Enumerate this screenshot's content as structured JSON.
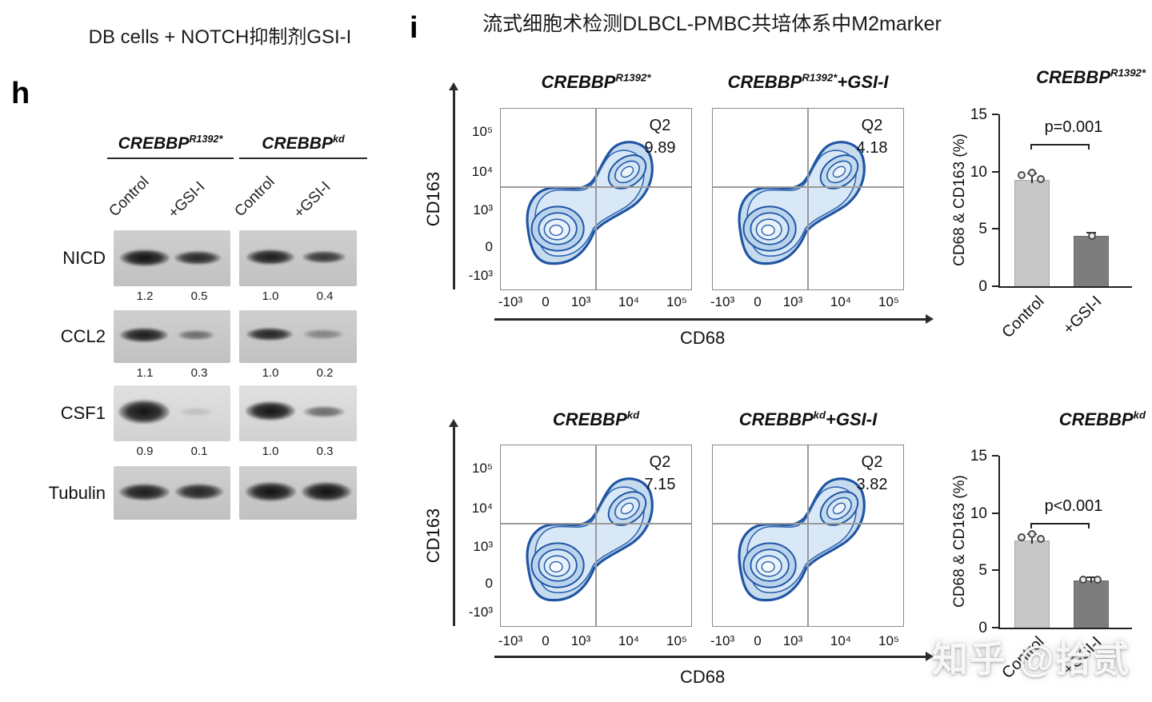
{
  "watermark": "知乎 @拾贰",
  "panel_h": {
    "label": "h",
    "title": "DB cells + NOTCH抑制剂GSI-I",
    "groups": [
      {
        "base": "CREBBP",
        "sup": "R1392*"
      },
      {
        "base": "CREBBP",
        "sup": "kd"
      }
    ],
    "lanes": [
      "Control",
      "+GSI-I",
      "Control",
      "+GSI-I"
    ],
    "rows": [
      {
        "protein": "NICD",
        "values": [
          "1.2",
          "0.5",
          "1.0",
          "0.4"
        ]
      },
      {
        "protein": "CCL2",
        "values": [
          "1.1",
          "0.3",
          "1.0",
          "0.2"
        ]
      },
      {
        "protein": "CSF1",
        "values": [
          "0.9",
          "0.1",
          "1.0",
          "0.3"
        ]
      },
      {
        "protein": "Tubulin",
        "values": []
      }
    ]
  },
  "panel_i": {
    "label": "i",
    "title": "流式细胞术检测DLBCL-PMBC共培体系中M2marker",
    "flow_rows": [
      {
        "y_label": "CD163",
        "x_label": "CD68",
        "y_ticks": [
          "10⁵",
          "10⁴",
          "10³",
          "0",
          "-10³"
        ],
        "x_ticks": [
          "-10³",
          "0",
          "10³",
          "10⁴",
          "10⁵"
        ],
        "plots": [
          {
            "title_base": "CREBBP",
            "title_sup": "R1392*",
            "title_suffix": "",
            "quadrant": "Q2",
            "value": "9.89"
          },
          {
            "title_base": "CREBBP",
            "title_sup": "R1392*",
            "title_suffix": "+GSI-I",
            "quadrant": "Q2",
            "value": "4.18"
          }
        ]
      },
      {
        "y_label": "CD163",
        "x_label": "CD68",
        "y_ticks": [
          "10⁵",
          "10⁴",
          "10³",
          "0",
          "-10³"
        ],
        "x_ticks": [
          "-10³",
          "0",
          "10³",
          "10⁴",
          "10⁵"
        ],
        "plots": [
          {
            "title_base": "CREBBP",
            "title_sup": "kd",
            "title_suffix": "",
            "quadrant": "Q2",
            "value": "7.15"
          },
          {
            "title_base": "CREBBP",
            "title_sup": "kd",
            "title_suffix": "+GSI-I",
            "quadrant": "Q2",
            "value": "3.82"
          }
        ]
      }
    ],
    "bar_charts": [
      {
        "title_base": "CREBBP",
        "title_sup": "R1392*",
        "y_label": "CD68 & CD163 (%)",
        "y_ticks": [
          "15",
          "10",
          "5",
          "0"
        ],
        "p_value": "p=0.001",
        "categories": [
          "Control",
          "+GSI-I"
        ]
      },
      {
        "title_base": "CREBBP",
        "title_sup": "kd",
        "y_label": "CD68 & CD163 (%)",
        "y_ticks": [
          "15",
          "10",
          "5",
          "0"
        ],
        "p_value": "p<0.001",
        "categories": [
          "Control",
          "+GSI-I"
        ]
      }
    ]
  },
  "chart_data": [
    {
      "type": "heatmap",
      "subtype": "flow-contour",
      "title": "CREBBP R1392*",
      "xlabel": "CD68",
      "ylabel": "CD163",
      "x_ticks": [
        "-10^3",
        "0",
        "10^3",
        "10^4",
        "10^5"
      ],
      "y_ticks": [
        "10^5",
        "10^4",
        "10^3",
        "0",
        "-10^3"
      ],
      "quadrant_label": "Q2",
      "q2_percent": 9.89
    },
    {
      "type": "heatmap",
      "subtype": "flow-contour",
      "title": "CREBBP R1392* +GSI-I",
      "xlabel": "CD68",
      "ylabel": "CD163",
      "x_ticks": [
        "-10^3",
        "0",
        "10^3",
        "10^4",
        "10^5"
      ],
      "y_ticks": [
        "10^5",
        "10^4",
        "10^3",
        "0",
        "-10^3"
      ],
      "quadrant_label": "Q2",
      "q2_percent": 4.18
    },
    {
      "type": "heatmap",
      "subtype": "flow-contour",
      "title": "CREBBP kd",
      "xlabel": "CD68",
      "ylabel": "CD163",
      "x_ticks": [
        "-10^3",
        "0",
        "10^3",
        "10^4",
        "10^5"
      ],
      "y_ticks": [
        "10^5",
        "10^4",
        "10^3",
        "0",
        "-10^3"
      ],
      "quadrant_label": "Q2",
      "q2_percent": 7.15
    },
    {
      "type": "heatmap",
      "subtype": "flow-contour",
      "title": "CREBBP kd +GSI-I",
      "xlabel": "CD68",
      "ylabel": "CD163",
      "x_ticks": [
        "-10^3",
        "0",
        "10^3",
        "10^4",
        "10^5"
      ],
      "y_ticks": [
        "10^5",
        "10^4",
        "10^3",
        "0",
        "-10^3"
      ],
      "quadrant_label": "Q2",
      "q2_percent": 3.82
    },
    {
      "type": "bar",
      "title": "CREBBP R1392*",
      "categories": [
        "Control",
        "+GSI-I"
      ],
      "values": [
        9.3,
        4.4
      ],
      "points": [
        [
          9.0,
          9.8,
          9.4
        ],
        [
          4.4
        ]
      ],
      "ylabel": "CD68 & CD163 (%)",
      "ylim": [
        0,
        15
      ],
      "yticks": [
        0,
        5,
        10,
        15
      ],
      "p_value": "p=0.001",
      "legend": "none",
      "grid": false
    },
    {
      "type": "bar",
      "title": "CREBBP kd",
      "categories": [
        "Control",
        "+GSI-I"
      ],
      "values": [
        7.6,
        4.1
      ],
      "points": [
        [
          7.3,
          7.9,
          7.6
        ],
        [
          4.0,
          4.2
        ]
      ],
      "ylabel": "CD68 & CD163 (%)",
      "ylim": [
        0,
        15
      ],
      "yticks": [
        0,
        5,
        10,
        15
      ],
      "p_value": "p<0.001",
      "legend": "none",
      "grid": false
    },
    {
      "type": "table",
      "subtype": "western-blot-quantification",
      "title": "DB cells + NOTCH inhibitor GSI-I",
      "columns": [
        "CREBBP R1392* Control",
        "CREBBP R1392* +GSI-I",
        "CREBBP kd Control",
        "CREBBP kd +GSI-I"
      ],
      "rows": [
        {
          "protein": "NICD",
          "values": [
            1.2,
            0.5,
            1.0,
            0.4
          ]
        },
        {
          "protein": "CCL2",
          "values": [
            1.1,
            0.3,
            1.0,
            0.2
          ]
        },
        {
          "protein": "CSF1",
          "values": [
            0.9,
            0.1,
            1.0,
            0.3
          ]
        },
        {
          "protein": "Tubulin",
          "values": null
        }
      ]
    }
  ]
}
